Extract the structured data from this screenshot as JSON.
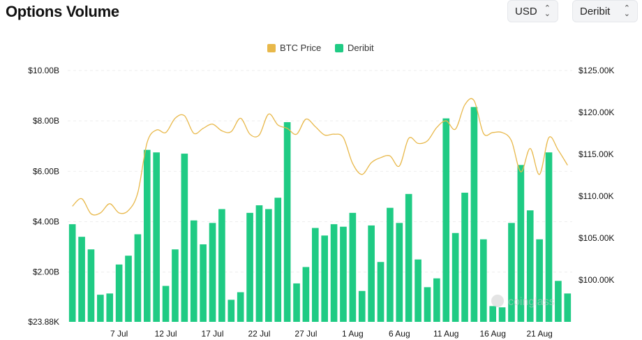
{
  "header": {
    "title": "Options Volume",
    "currency_select": "USD",
    "exchange_select": "Deribit"
  },
  "watermark": "coinglass",
  "colors": {
    "price": "#e8b84a",
    "volume": "#1fcb84",
    "grid": "#eeeeee"
  },
  "chart_data": {
    "type": "bar",
    "title": "",
    "legend": {
      "placement": "top-center",
      "items": [
        {
          "name": "BTC Price",
          "color": "#e8b84a"
        },
        {
          "name": "Deribit",
          "color": "#1fcb84"
        }
      ]
    },
    "x_tick_labels": [
      "7 Jul",
      "12 Jul",
      "17 Jul",
      "22 Jul",
      "27 Jul",
      "1 Aug",
      "6 Aug",
      "11 Aug",
      "16 Aug",
      "21 Aug"
    ],
    "x_tick_index": [
      5,
      10,
      15,
      20,
      25,
      30,
      35,
      40,
      45,
      50
    ],
    "y_left": {
      "label": "",
      "min": 0.02388,
      "max": 10,
      "ticks": [
        0.02388,
        2,
        4,
        6,
        8,
        10
      ],
      "tick_labels": [
        "$23.88K",
        "$2.00B",
        "$4.00B",
        "$6.00B",
        "$8.00B",
        "$10.00B"
      ]
    },
    "y_right": {
      "label": "",
      "min": 95,
      "max": 125,
      "ticks": [
        100,
        105,
        110,
        115,
        120,
        125
      ],
      "tick_labels": [
        "$100.00K",
        "$105.00K",
        "$110.00K",
        "$115.00K",
        "$120.00K",
        "$125.00K"
      ]
    },
    "grid": true,
    "series": [
      {
        "name": "Deribit",
        "type": "bar",
        "axis": "left",
        "values": [
          3.9,
          3.4,
          2.9,
          1.1,
          1.15,
          2.3,
          2.65,
          3.5,
          6.85,
          6.75,
          1.45,
          2.9,
          6.7,
          4.05,
          3.1,
          3.95,
          4.5,
          0.9,
          1.2,
          4.35,
          4.65,
          4.5,
          4.95,
          7.95,
          1.55,
          2.2,
          3.75,
          3.45,
          3.9,
          3.8,
          4.35,
          1.25,
          3.85,
          2.4,
          4.55,
          3.95,
          5.1,
          2.5,
          1.4,
          1.75,
          8.1,
          3.55,
          5.15,
          8.55,
          3.3,
          0.65,
          0.6,
          3.95,
          6.25,
          4.45,
          3.3,
          6.75,
          1.65,
          1.15
        ]
      },
      {
        "name": "BTC Price",
        "type": "line",
        "axis": "right",
        "values": [
          108.8,
          109.7,
          107.9,
          108.0,
          109.1,
          108.0,
          108.3,
          110.4,
          116.4,
          117.9,
          117.6,
          119.3,
          119.6,
          117.5,
          118.1,
          118.6,
          117.8,
          117.7,
          119.3,
          117.4,
          117.3,
          119.8,
          118.5,
          118.1,
          117.4,
          119.2,
          118.3,
          117.3,
          117.4,
          117.0,
          113.9,
          112.6,
          114.0,
          114.6,
          114.8,
          113.6,
          116.9,
          116.3,
          116.6,
          118.2,
          119.0,
          118.0,
          120.9,
          121.4,
          117.5,
          117.6,
          117.6,
          116.6,
          112.9,
          115.7,
          112.6,
          117.0,
          115.5,
          113.7
        ]
      }
    ]
  }
}
